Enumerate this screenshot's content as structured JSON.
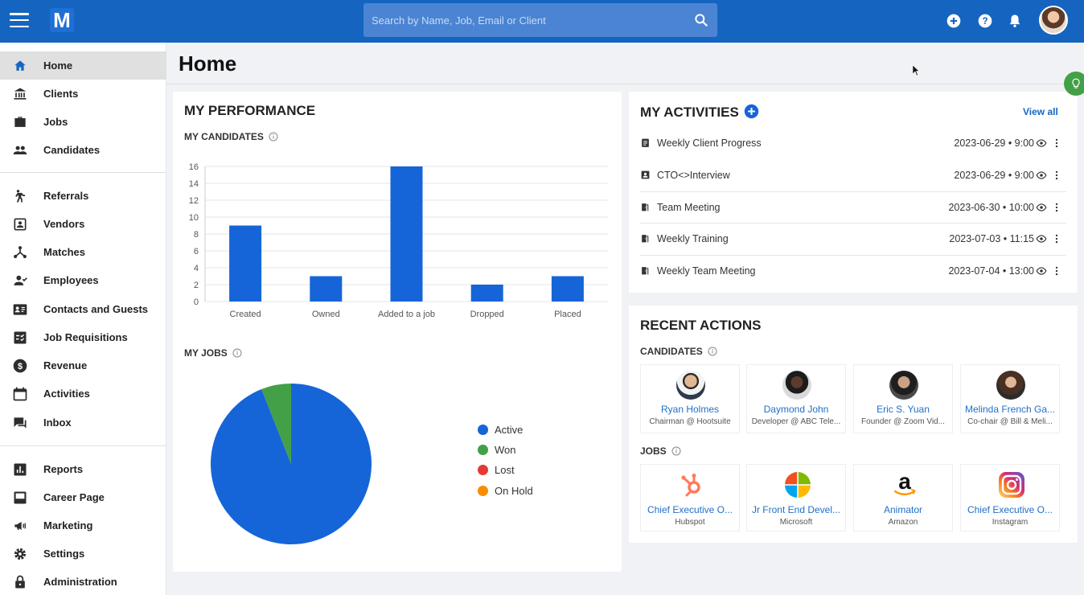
{
  "header": {
    "logo_letter": "M",
    "search_placeholder": "Search by Name, Job, Email or Client"
  },
  "sidebar": {
    "items": [
      {
        "label": "Home",
        "icon": "home-icon",
        "active": true
      },
      {
        "label": "Clients",
        "icon": "bank-icon"
      },
      {
        "label": "Jobs",
        "icon": "briefcase-icon"
      },
      {
        "label": "Candidates",
        "icon": "people-icon"
      },
      {
        "label": "Referrals",
        "icon": "referral-icon"
      },
      {
        "label": "Vendors",
        "icon": "vendor-icon"
      },
      {
        "label": "Matches",
        "icon": "matches-icon"
      },
      {
        "label": "Employees",
        "icon": "employee-icon"
      },
      {
        "label": "Contacts and Guests",
        "icon": "contact-card-icon"
      },
      {
        "label": "Job Requisitions",
        "icon": "checklist-icon"
      },
      {
        "label": "Revenue",
        "icon": "dollar-icon"
      },
      {
        "label": "Activities",
        "icon": "calendar-icon"
      },
      {
        "label": "Inbox",
        "icon": "chat-icon"
      },
      {
        "label": "Reports",
        "icon": "bar-chart-icon"
      },
      {
        "label": "Career Page",
        "icon": "page-icon"
      },
      {
        "label": "Marketing",
        "icon": "megaphone-icon"
      },
      {
        "label": "Settings",
        "icon": "gear-icon"
      },
      {
        "label": "Administration",
        "icon": "lock-icon"
      }
    ]
  },
  "main": {
    "title": "Home",
    "performance": {
      "title": "MY PERFORMANCE",
      "candidates_label": "MY CANDIDATES",
      "jobs_label": "MY JOBS"
    },
    "activities": {
      "title": "MY ACTIVITIES",
      "view_all": "View all",
      "items": [
        {
          "title": "Weekly Client Progress",
          "time": "2023-06-29 • 9:00",
          "icon": "clipboard-icon"
        },
        {
          "title": "CTO<>Interview",
          "time": "2023-06-29 • 9:00",
          "icon": "contact-icon"
        },
        {
          "title": "Team Meeting",
          "time": "2023-06-30 • 10:00",
          "icon": "door-icon"
        },
        {
          "title": "Weekly Training",
          "time": "2023-07-03 • 11:15",
          "icon": "door-icon"
        },
        {
          "title": "Weekly Team Meeting",
          "time": "2023-07-04 • 13:00",
          "icon": "door-icon"
        }
      ]
    },
    "recent": {
      "title": "RECENT ACTIONS",
      "candidates_label": "CANDIDATES",
      "jobs_label": "JOBS",
      "candidates": [
        {
          "name": "Ryan Holmes",
          "sub": "Chairman @ Hootsuite"
        },
        {
          "name": "Daymond John",
          "sub": "Developer @ ABC Tele..."
        },
        {
          "name": "Eric S. Yuan",
          "sub": "Founder @ Zoom Vid..."
        },
        {
          "name": "Melinda French Ga...",
          "sub": "Co-chair @ Bill & Meli..."
        }
      ],
      "jobs": [
        {
          "name": "Chief Executive O...",
          "sub": "Hubspot",
          "logo": "hubspot-logo"
        },
        {
          "name": "Jr Front End Devel...",
          "sub": "Microsoft",
          "logo": "microsoft-logo"
        },
        {
          "name": "Animator",
          "sub": "Amazon",
          "logo": "amazon-logo"
        },
        {
          "name": "Chief Executive O...",
          "sub": "Instagram",
          "logo": "instagram-logo"
        }
      ]
    }
  },
  "chart_data": [
    {
      "type": "bar",
      "categories": [
        "Created",
        "Owned",
        "Added to a job",
        "Dropped",
        "Placed"
      ],
      "values": [
        9,
        3,
        16,
        2,
        3
      ],
      "ylim": [
        0,
        16
      ],
      "yticks": [
        0,
        2,
        4,
        6,
        8,
        10,
        12,
        14,
        16
      ],
      "grid": true,
      "color": "#1565d8"
    },
    {
      "type": "pie",
      "labels": [
        "Active",
        "Won",
        "Lost",
        "On Hold"
      ],
      "values": [
        94,
        6,
        0,
        0
      ],
      "colors": [
        "#1565d8",
        "#43a047",
        "#e53935",
        "#fb8c00"
      ],
      "legend": "right"
    }
  ]
}
